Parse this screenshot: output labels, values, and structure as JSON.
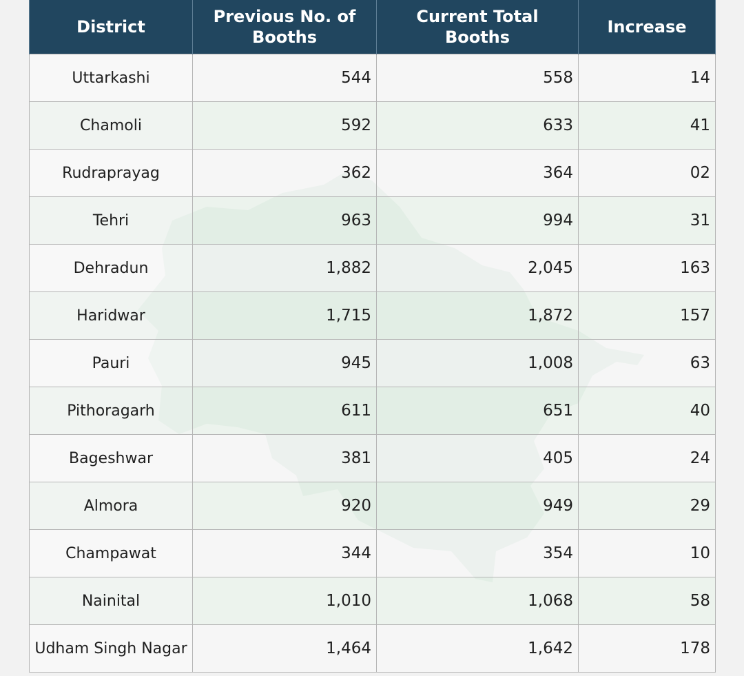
{
  "table": {
    "headers": [
      "District",
      "Previous No. of Booths",
      "Current Total Booths",
      "Increase"
    ],
    "rows": [
      {
        "district": "Uttarkashi",
        "previous": "544",
        "current": "558",
        "increase": "14"
      },
      {
        "district": "Chamoli",
        "previous": "592",
        "current": "633",
        "increase": "41"
      },
      {
        "district": "Rudraprayag",
        "previous": "362",
        "current": "364",
        "increase": "02"
      },
      {
        "district": "Tehri",
        "previous": "963",
        "current": "994",
        "increase": "31"
      },
      {
        "district": "Dehradun",
        "previous": "1,882",
        "current": "2,045",
        "increase": "163"
      },
      {
        "district": "Haridwar",
        "previous": "1,715",
        "current": "1,872",
        "increase": "157"
      },
      {
        "district": "Pauri",
        "previous": "945",
        "current": "1,008",
        "increase": "63"
      },
      {
        "district": "Pithoragarh",
        "previous": "611",
        "current": "651",
        "increase": "40"
      },
      {
        "district": "Bageshwar",
        "previous": "381",
        "current": "405",
        "increase": "24"
      },
      {
        "district": "Almora",
        "previous": "920",
        "current": "949",
        "increase": "29"
      },
      {
        "district": "Champawat",
        "previous": "344",
        "current": "354",
        "increase": "10"
      },
      {
        "district": "Nainital",
        "previous": "1,010",
        "current": "1,068",
        "increase": "58"
      },
      {
        "district": "Udham Singh Nagar",
        "previous": "1,464",
        "current": "1,642",
        "increase": "178"
      }
    ]
  },
  "colors": {
    "header_bg": "#21465f",
    "header_text": "#ffffff",
    "page_bg": "#f2f2f2",
    "map_watermark": "#cfe0d6"
  }
}
